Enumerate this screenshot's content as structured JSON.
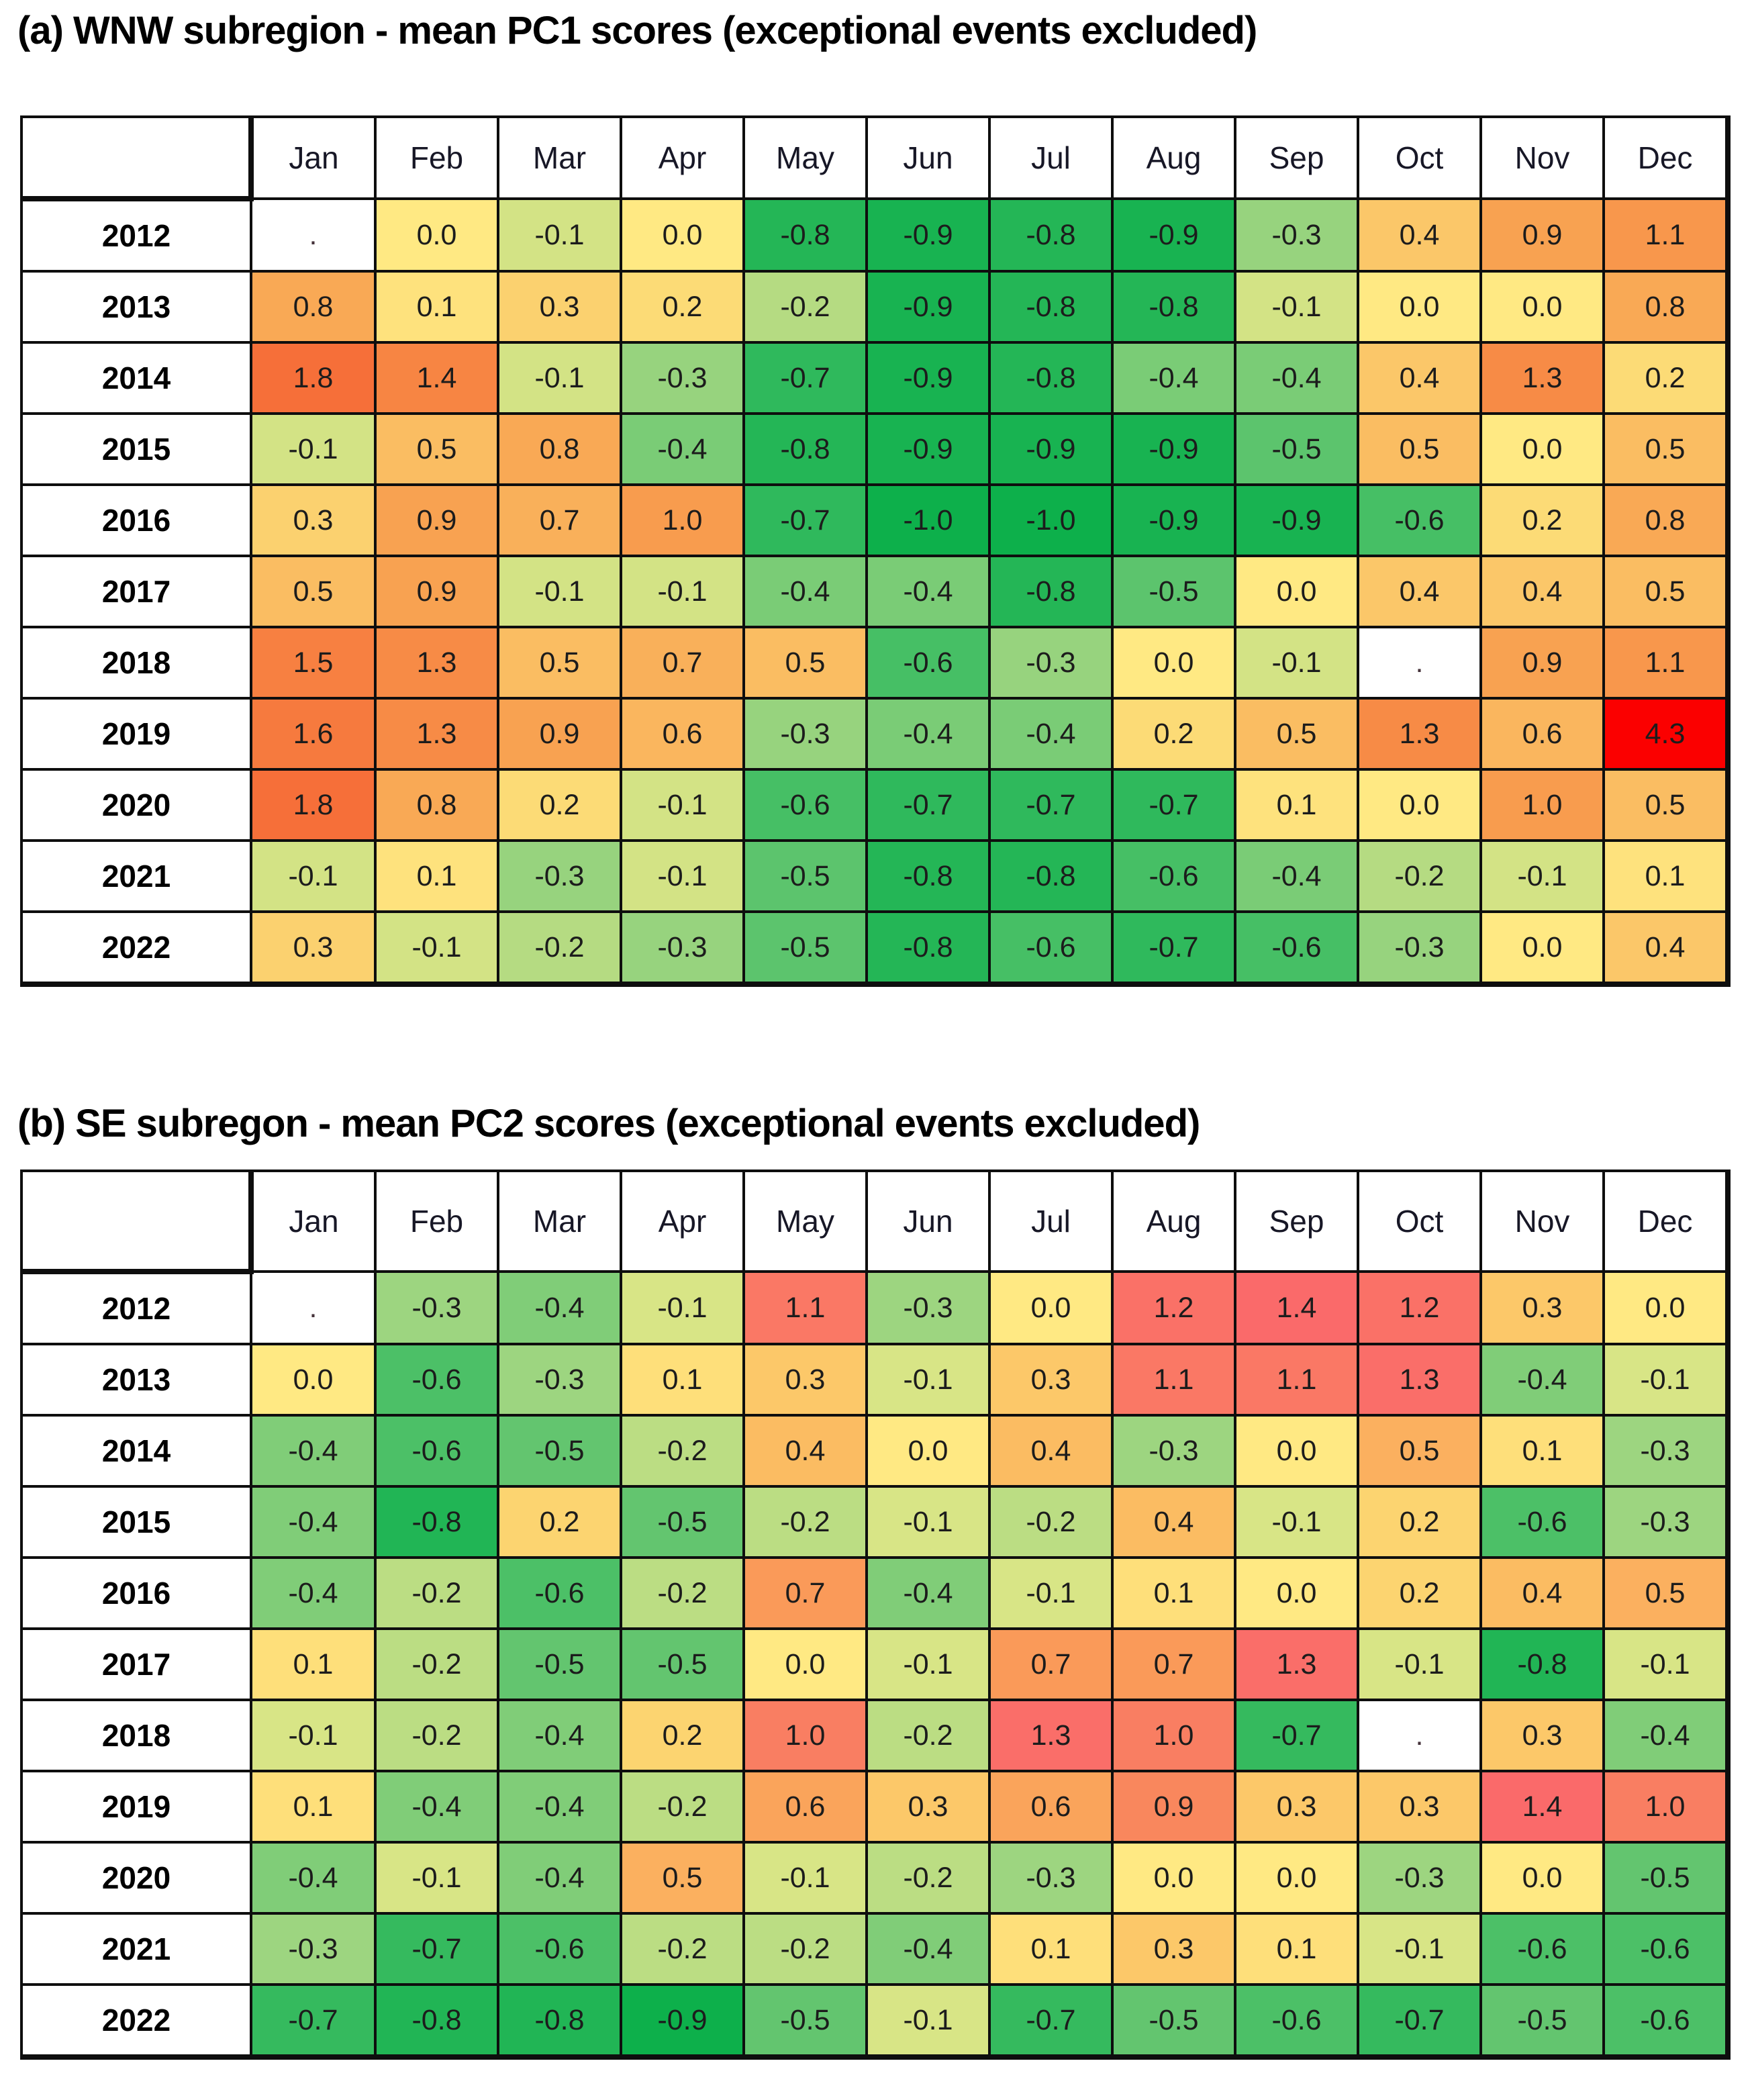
{
  "page": {
    "background": "#ffffff",
    "grid_line_color": "#0e0e0e"
  },
  "chart_data": [
    {
      "type": "heatmap",
      "panel": "a",
      "title": "(a) WNW subregion - mean PC1 scores (exceptional events excluded)",
      "x_labels": [
        "Jan",
        "Feb",
        "Mar",
        "Apr",
        "May",
        "Jun",
        "Jul",
        "Aug",
        "Sep",
        "Oct",
        "Nov",
        "Dec"
      ],
      "y_labels": [
        "2012",
        "2013",
        "2014",
        "2015",
        "2016",
        "2017",
        "2018",
        "2019",
        "2020",
        "2021",
        "2022"
      ],
      "missing_marker": ".",
      "value_range": [
        -1.0,
        4.3
      ],
      "legend": "none",
      "values": [
        [
          null,
          0.0,
          -0.1,
          0.0,
          -0.8,
          -0.9,
          -0.8,
          -0.9,
          -0.3,
          0.4,
          0.9,
          1.1
        ],
        [
          0.8,
          0.1,
          0.3,
          0.2,
          -0.2,
          -0.9,
          -0.8,
          -0.8,
          -0.1,
          0.0,
          0.0,
          0.8
        ],
        [
          1.8,
          1.4,
          -0.1,
          -0.3,
          -0.7,
          -0.9,
          -0.8,
          -0.4,
          -0.4,
          0.4,
          1.3,
          0.2
        ],
        [
          -0.1,
          0.5,
          0.8,
          -0.4,
          -0.8,
          -0.9,
          -0.9,
          -0.9,
          -0.5,
          0.5,
          0.0,
          0.5
        ],
        [
          0.3,
          0.9,
          0.7,
          1.0,
          -0.7,
          -1.0,
          -1.0,
          -0.9,
          -0.9,
          -0.6,
          0.2,
          0.8
        ],
        [
          0.5,
          0.9,
          -0.1,
          -0.1,
          -0.4,
          -0.4,
          -0.8,
          -0.5,
          0.0,
          0.4,
          0.4,
          0.5
        ],
        [
          1.5,
          1.3,
          0.5,
          0.7,
          0.5,
          -0.6,
          -0.3,
          0.0,
          -0.1,
          null,
          0.9,
          1.1
        ],
        [
          1.6,
          1.3,
          0.9,
          0.6,
          -0.3,
          -0.4,
          -0.4,
          0.2,
          0.5,
          1.3,
          0.6,
          4.3
        ],
        [
          1.8,
          0.8,
          0.2,
          -0.1,
          -0.6,
          -0.7,
          -0.7,
          -0.7,
          0.1,
          0.0,
          1.0,
          0.5
        ],
        [
          -0.1,
          0.1,
          -0.3,
          -0.1,
          -0.5,
          -0.8,
          -0.8,
          -0.6,
          -0.4,
          -0.2,
          -0.1,
          0.1
        ],
        [
          0.3,
          -0.1,
          -0.2,
          -0.3,
          -0.5,
          -0.8,
          -0.6,
          -0.7,
          -0.6,
          -0.3,
          0.0,
          0.4
        ]
      ],
      "color_scale": [
        {
          "v": -1.0,
          "c": "#0DB04B"
        },
        {
          "v": -0.7,
          "c": "#2FB95C"
        },
        {
          "v": -0.5,
          "c": "#5CC46D"
        },
        {
          "v": -0.3,
          "c": "#97D37E"
        },
        {
          "v": -0.1,
          "c": "#D3E385"
        },
        {
          "v": 0.0,
          "c": "#FFE983"
        },
        {
          "v": 0.2,
          "c": "#FCDB76"
        },
        {
          "v": 0.5,
          "c": "#FABD62"
        },
        {
          "v": 0.9,
          "c": "#F8A251"
        },
        {
          "v": 1.3,
          "c": "#F78B46"
        },
        {
          "v": 1.8,
          "c": "#F66F39"
        },
        {
          "v": 4.3,
          "c": "#FB0000"
        }
      ]
    },
    {
      "type": "heatmap",
      "panel": "b",
      "title": "(b) SE subregon - mean PC2 scores (exceptional events excluded)",
      "x_labels": [
        "Jan",
        "Feb",
        "Mar",
        "Apr",
        "May",
        "Jun",
        "Jul",
        "Aug",
        "Sep",
        "Oct",
        "Nov",
        "Dec"
      ],
      "y_labels": [
        "2012",
        "2013",
        "2014",
        "2015",
        "2016",
        "2017",
        "2018",
        "2019",
        "2020",
        "2021",
        "2022"
      ],
      "missing_marker": ".",
      "value_range": [
        -0.9,
        1.4
      ],
      "legend": "none",
      "values": [
        [
          null,
          -0.3,
          -0.4,
          -0.1,
          1.1,
          -0.3,
          0.0,
          1.2,
          1.4,
          1.2,
          0.3,
          0.0
        ],
        [
          0.0,
          -0.6,
          -0.3,
          0.1,
          0.3,
          -0.1,
          0.3,
          1.1,
          1.1,
          1.3,
          -0.4,
          -0.1
        ],
        [
          -0.4,
          -0.6,
          -0.5,
          -0.2,
          0.4,
          0.0,
          0.4,
          -0.3,
          0.0,
          0.5,
          0.1,
          -0.3
        ],
        [
          -0.4,
          -0.8,
          0.2,
          -0.5,
          -0.2,
          -0.1,
          -0.2,
          0.4,
          -0.1,
          0.2,
          -0.6,
          -0.3
        ],
        [
          -0.4,
          -0.2,
          -0.6,
          -0.2,
          0.7,
          -0.4,
          -0.1,
          0.1,
          0.0,
          0.2,
          0.4,
          0.5
        ],
        [
          0.1,
          -0.2,
          -0.5,
          -0.5,
          0.0,
          -0.1,
          0.7,
          0.7,
          1.3,
          -0.1,
          -0.8,
          -0.1
        ],
        [
          -0.1,
          -0.2,
          -0.4,
          0.2,
          1.0,
          -0.2,
          1.3,
          1.0,
          -0.7,
          null,
          0.3,
          -0.4
        ],
        [
          0.1,
          -0.4,
          -0.4,
          -0.2,
          0.6,
          0.3,
          0.6,
          0.9,
          0.3,
          0.3,
          1.4,
          1.0
        ],
        [
          -0.4,
          -0.1,
          -0.4,
          0.5,
          -0.1,
          -0.2,
          -0.3,
          0.0,
          0.0,
          -0.3,
          0.0,
          -0.5
        ],
        [
          -0.3,
          -0.7,
          -0.6,
          -0.2,
          -0.2,
          -0.4,
          0.1,
          0.3,
          0.1,
          -0.1,
          -0.6,
          -0.6
        ],
        [
          -0.7,
          -0.8,
          -0.8,
          -0.9,
          -0.5,
          -0.1,
          -0.7,
          -0.5,
          -0.6,
          -0.7,
          -0.5,
          -0.6
        ]
      ],
      "color_scale": [
        {
          "v": -0.9,
          "c": "#0DB04B"
        },
        {
          "v": -0.7,
          "c": "#35BA5E"
        },
        {
          "v": -0.5,
          "c": "#63C56F"
        },
        {
          "v": -0.3,
          "c": "#9DD580"
        },
        {
          "v": -0.1,
          "c": "#D8E586"
        },
        {
          "v": 0.0,
          "c": "#FFE983"
        },
        {
          "v": 0.2,
          "c": "#FCD470"
        },
        {
          "v": 0.4,
          "c": "#FBBC62"
        },
        {
          "v": 0.6,
          "c": "#FAA45B"
        },
        {
          "v": 0.8,
          "c": "#F98F57"
        },
        {
          "v": 1.0,
          "c": "#F97E62"
        },
        {
          "v": 1.2,
          "c": "#FA7167"
        },
        {
          "v": 1.4,
          "c": "#FA6A6A"
        }
      ]
    }
  ]
}
